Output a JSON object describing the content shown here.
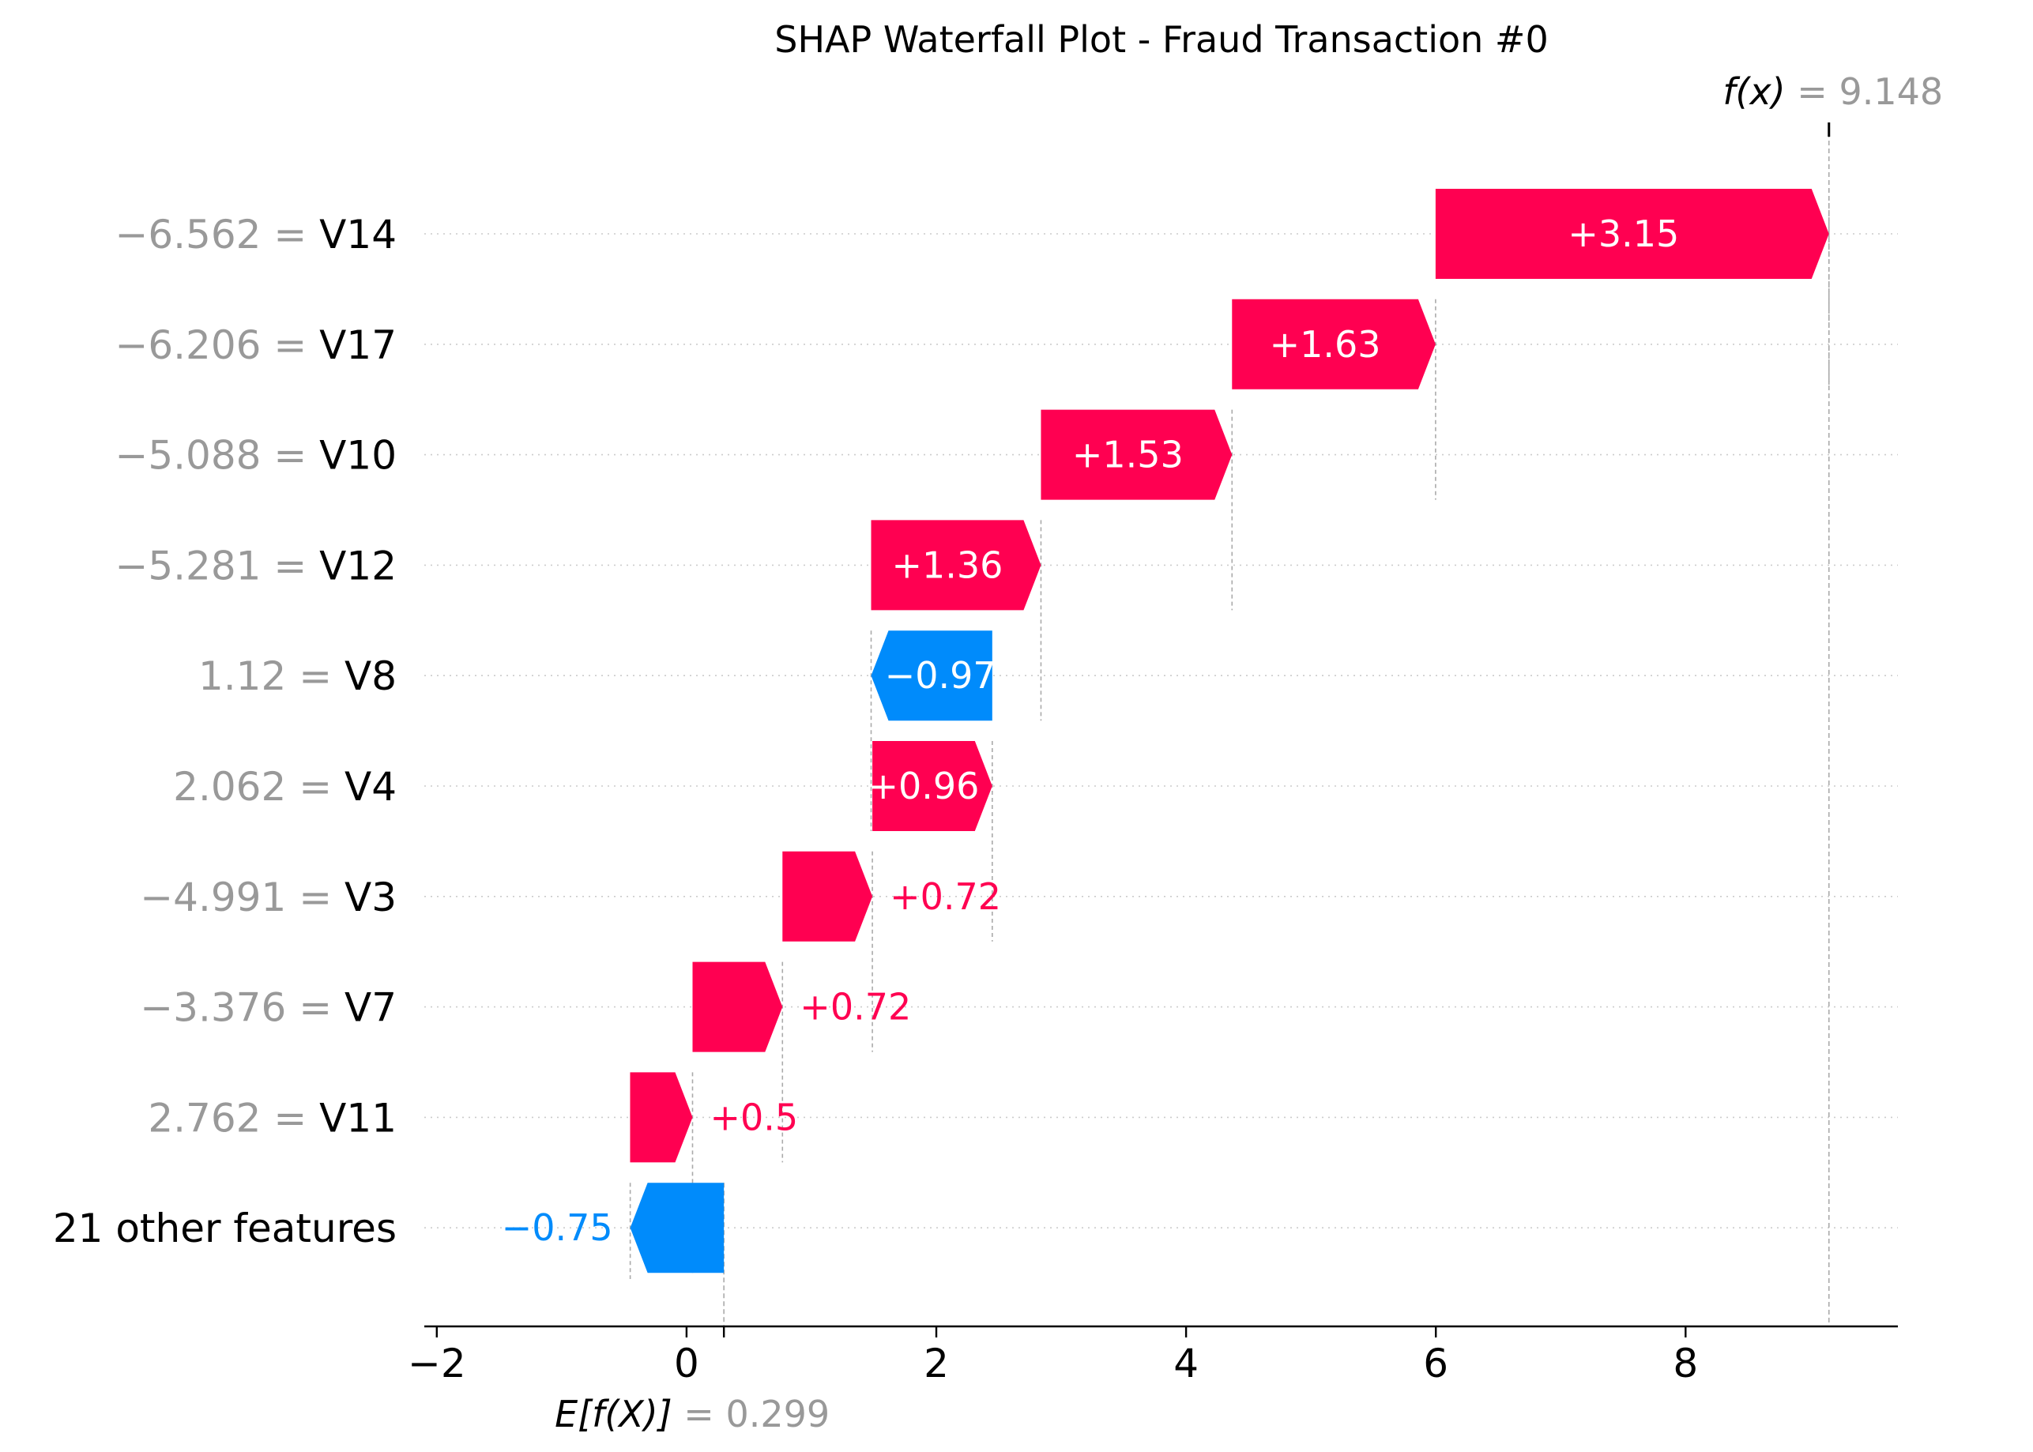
{
  "chart_data": {
    "type": "waterfall",
    "title": "SHAP Waterfall Plot - Fraud Transaction #0",
    "base_value": 0.299,
    "base_value_label": "0.299",
    "base_label": "E[f(X)]",
    "output_value": 9.148,
    "output_value_label": "9.148",
    "output_label": "f(x)",
    "xlim": [
      -2.1,
      9.7
    ],
    "xticks": [
      -2,
      0,
      2,
      4,
      6,
      8
    ],
    "xtick_labels": [
      "−2",
      "0",
      "2",
      "4",
      "6",
      "8"
    ],
    "colors": {
      "positive": "#ff0051",
      "negative": "#008bfb",
      "feature_value_text": "#999999",
      "feature_name_text": "#000000",
      "gridline": "#cccccc"
    },
    "features": [
      {
        "value": "−6.562",
        "name": "V14",
        "shap": 3.15,
        "shap_label": "+3.15",
        "start": 5.998
      },
      {
        "value": "−6.206",
        "name": "V17",
        "shap": 1.63,
        "shap_label": "+1.63",
        "start": 4.368
      },
      {
        "value": "−5.088",
        "name": "V10",
        "shap": 1.53,
        "shap_label": "+1.53",
        "start": 2.838
      },
      {
        "value": "−5.281",
        "name": "V12",
        "shap": 1.36,
        "shap_label": "+1.36",
        "start": 1.478
      },
      {
        "value": "1.12",
        "name": "V8",
        "shap": -0.97,
        "shap_label": "−0.97",
        "start": 2.448
      },
      {
        "value": "2.062",
        "name": "V4",
        "shap": 0.96,
        "shap_label": "+0.96",
        "start": 1.488
      },
      {
        "value": "−4.991",
        "name": "V3",
        "shap": 0.72,
        "shap_label": "+0.72",
        "start": 0.768
      },
      {
        "value": "−3.376",
        "name": "V7",
        "shap": 0.72,
        "shap_label": "+0.72",
        "start": 0.048
      },
      {
        "value": "2.762",
        "name": "V11",
        "shap": 0.5,
        "shap_label": "+0.5",
        "start": -0.452
      },
      {
        "value": "",
        "name": "21 other features",
        "shap": -0.75,
        "shap_label": "−0.75",
        "start": 0.299
      }
    ]
  }
}
